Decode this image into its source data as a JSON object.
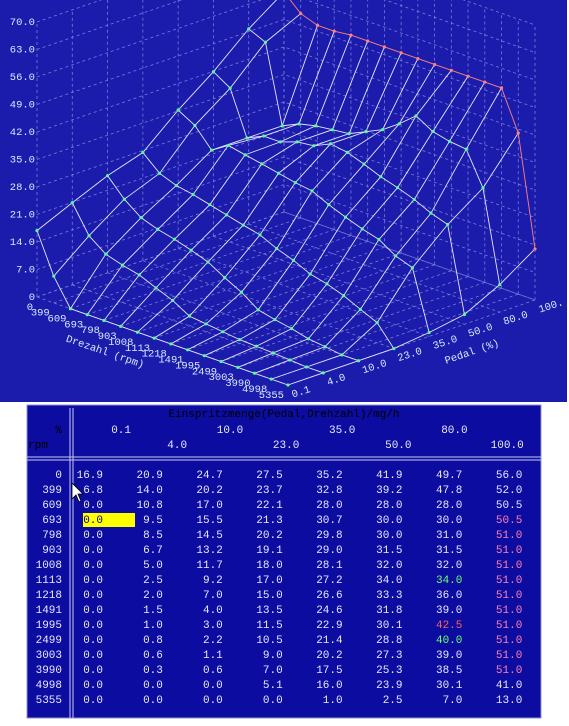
{
  "plot": {
    "type": "surface3d",
    "zlim": [
      0,
      70
    ],
    "zticks": [
      0,
      {
        "value": 7,
        "label": "7.0"
      },
      {
        "value": 14,
        "label": "14.0"
      },
      {
        "value": 21,
        "label": "21.0"
      },
      {
        "value": 28,
        "label": "28.0"
      },
      {
        "value": 35,
        "label": "35.0"
      },
      {
        "value": 42,
        "label": "42.0"
      },
      {
        "value": 49,
        "label": "49.0"
      },
      {
        "value": 56,
        "label": "56.0"
      },
      {
        "value": 63,
        "label": "63.0"
      },
      {
        "value": 70,
        "label": "70.0"
      }
    ],
    "x_axis_label": "Drezahl (rpm)",
    "y_axis_label": "Pedal (%)",
    "pedal_labels": [
      "0.1",
      "4.0",
      "10.0",
      "23.0",
      "35.0",
      "50.0",
      "80.0",
      "100."
    ],
    "line_color": "#e4e4ff",
    "point_color": "#50ff90",
    "edge_color": "#ff8080",
    "grid_color": "#7a7ad8"
  },
  "table": {
    "title": "Einspritzmenge(Pedal,Drehzahl)/mg/h",
    "corner_top": "%",
    "corner_bottom": "rpm",
    "columns": [
      "0.1",
      "4.0",
      "10.0",
      "23.0",
      "35.0",
      "50.0",
      "80.0",
      "100.0"
    ],
    "text_color": "#e8e8ff",
    "rows": [
      {
        "rpm": "0",
        "cells": [
          "16.9",
          "20.9",
          "24.7",
          "27.5",
          "35.2",
          "41.9",
          "49.7",
          "56.0"
        ]
      },
      {
        "rpm": "399",
        "cells": [
          "6.8",
          "14.0",
          "20.2",
          "23.7",
          "32.8",
          "39.2",
          "47.8",
          "52.0"
        ]
      },
      {
        "rpm": "609",
        "cells": [
          "0.0",
          "10.8",
          "17.0",
          "22.1",
          "28.0",
          "28.0",
          "28.0",
          "50.5"
        ]
      },
      {
        "rpm": "693",
        "cells": [
          "0.0",
          "9.5",
          "15.5",
          "21.3",
          "30.7",
          "30.0",
          "30.0",
          "50.5"
        ],
        "colors": [
          "#000080",
          null,
          null,
          null,
          null,
          null,
          null,
          "#ff80b0"
        ],
        "backgrounds": [
          "#ffff00",
          null,
          null,
          null,
          null,
          null,
          null,
          null
        ]
      },
      {
        "rpm": "798",
        "cells": [
          "0.0",
          "8.5",
          "14.5",
          "20.2",
          "29.8",
          "30.0",
          "31.0",
          "51.0"
        ],
        "colors": [
          null,
          null,
          null,
          null,
          null,
          null,
          null,
          "#ff80b0"
        ]
      },
      {
        "rpm": "903",
        "cells": [
          "0.0",
          "6.7",
          "13.2",
          "19.1",
          "29.0",
          "31.5",
          "31.5",
          "51.0"
        ],
        "colors": [
          null,
          null,
          null,
          null,
          null,
          null,
          null,
          "#ff80b0"
        ]
      },
      {
        "rpm": "1008",
        "cells": [
          "0.0",
          "5.0",
          "11.7",
          "18.0",
          "28.1",
          "32.0",
          "32.0",
          "51.0"
        ],
        "colors": [
          null,
          null,
          null,
          null,
          null,
          null,
          null,
          "#ff80b0"
        ]
      },
      {
        "rpm": "1113",
        "cells": [
          "0.0",
          "2.5",
          "9.2",
          "17.0",
          "27.2",
          "34.0",
          "34.0",
          "51.0"
        ],
        "colors": [
          null,
          null,
          null,
          null,
          null,
          null,
          "#70ff70",
          "#ff80b0"
        ]
      },
      {
        "rpm": "1218",
        "cells": [
          "0.0",
          "2.0",
          "7.0",
          "15.0",
          "26.6",
          "33.3",
          "36.0",
          "51.0"
        ],
        "colors": [
          null,
          null,
          null,
          null,
          null,
          null,
          null,
          "#ff80b0"
        ]
      },
      {
        "rpm": "1491",
        "cells": [
          "0.0",
          "1.5",
          "4.0",
          "13.5",
          "24.6",
          "31.8",
          "39.0",
          "51.0"
        ],
        "colors": [
          null,
          null,
          null,
          null,
          null,
          null,
          null,
          "#ff80b0"
        ]
      },
      {
        "rpm": "1995",
        "cells": [
          "0.0",
          "1.0",
          "3.0",
          "11.5",
          "22.9",
          "30.1",
          "42.5",
          "51.0"
        ],
        "colors": [
          null,
          null,
          null,
          null,
          null,
          null,
          "#ff6060",
          "#ff80b0"
        ]
      },
      {
        "rpm": "2499",
        "cells": [
          "0.0",
          "0.8",
          "2.2",
          "10.5",
          "21.4",
          "28.8",
          "40.0",
          "51.0"
        ],
        "colors": [
          null,
          null,
          null,
          null,
          null,
          null,
          "#70ff70",
          "#ff80b0"
        ]
      },
      {
        "rpm": "3003",
        "cells": [
          "0.0",
          "0.6",
          "1.1",
          "9.0",
          "20.2",
          "27.3",
          "39.0",
          "51.0"
        ],
        "colors": [
          null,
          null,
          null,
          null,
          null,
          null,
          null,
          "#ff80b0"
        ]
      },
      {
        "rpm": "3990",
        "cells": [
          "0.0",
          "0.3",
          "0.6",
          "7.0",
          "17.5",
          "25.3",
          "38.5",
          "51.0"
        ],
        "colors": [
          null,
          null,
          null,
          null,
          null,
          null,
          null,
          "#ff80b0"
        ]
      },
      {
        "rpm": "4998",
        "cells": [
          "0.0",
          "0.0",
          "0.0",
          "5.1",
          "16.0",
          "23.9",
          "30.1",
          "41.0"
        ]
      },
      {
        "rpm": "5355",
        "cells": [
          "0.0",
          "0.0",
          "0.0",
          "0.0",
          "1.0",
          "2.5",
          "7.0",
          "13.0"
        ]
      }
    ]
  }
}
